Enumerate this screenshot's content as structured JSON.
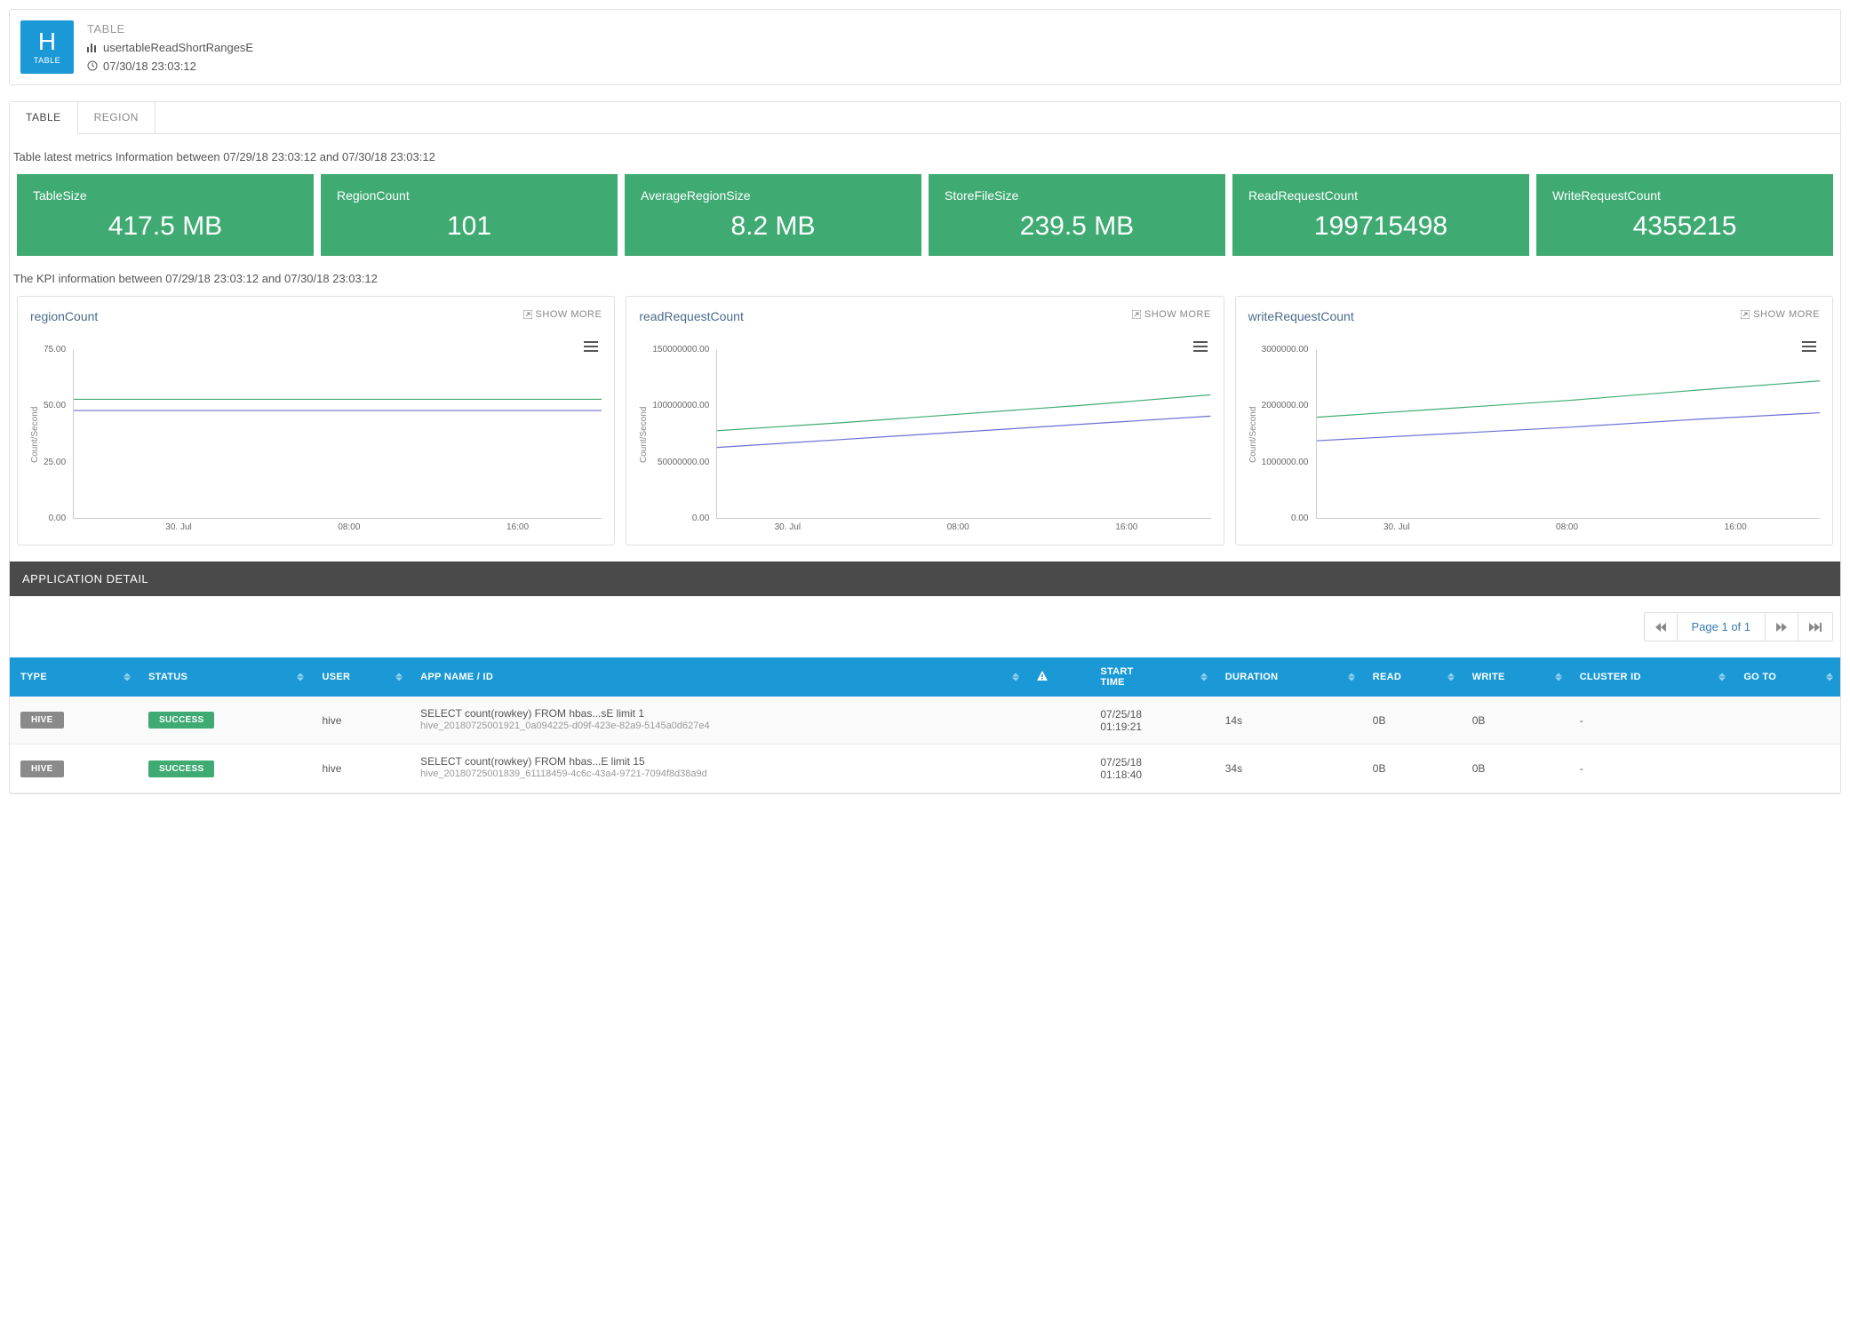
{
  "header": {
    "badge_letter": "H",
    "badge_sub": "TABLE",
    "category": "TABLE",
    "name": "usertableReadShortRangesE",
    "timestamp": "07/30/18 23:03:12"
  },
  "tabs": [
    {
      "label": "TABLE",
      "active": true
    },
    {
      "label": "REGION",
      "active": false
    }
  ],
  "section1_label": "Table latest metrics Information between 07/29/18 23:03:12 and 07/30/18 23:03:12",
  "metrics": [
    {
      "title": "TableSize",
      "value": "417.5 MB"
    },
    {
      "title": "RegionCount",
      "value": "101"
    },
    {
      "title": "AverageRegionSize",
      "value": "8.2 MB"
    },
    {
      "title": "StoreFileSize",
      "value": "239.5 MB"
    },
    {
      "title": "ReadRequestCount",
      "value": "199715498"
    },
    {
      "title": "WriteRequestCount",
      "value": "4355215"
    }
  ],
  "section2_label": "The KPI information between 07/29/18 23:03:12 and 07/30/18 23:03:12",
  "show_more_label": "SHOW MORE",
  "charts": [
    {
      "title": "regionCount",
      "type": "line",
      "y_label": "Count/Second",
      "y_ticks": [
        "75.00",
        "50.00",
        "25.00",
        "0.00"
      ],
      "x_ticks": [
        "30. Jul",
        "08:00",
        "16:00"
      ],
      "y_max": 75,
      "series": [
        {
          "color": "#3fab73",
          "points": [
            [
              0,
              53
            ],
            [
              0.25,
              53
            ],
            [
              0.5,
              53
            ],
            [
              0.75,
              53
            ],
            [
              1,
              53
            ]
          ]
        },
        {
          "color": "#6b6fd4",
          "points": [
            [
              0,
              48
            ],
            [
              0.25,
              48
            ],
            [
              0.5,
              48
            ],
            [
              0.75,
              48
            ],
            [
              1,
              48
            ]
          ]
        }
      ]
    },
    {
      "title": "readRequestCount",
      "type": "line",
      "y_label": "Count/Second",
      "y_ticks": [
        "150000000.00",
        "100000000.00",
        "50000000.00",
        "0.00"
      ],
      "x_ticks": [
        "30. Jul",
        "08:00",
        "16:00"
      ],
      "y_max": 150000000,
      "series": [
        {
          "color": "#3fab73",
          "points": [
            [
              0,
              78000000
            ],
            [
              0.25,
              85000000
            ],
            [
              0.5,
              93000000
            ],
            [
              0.75,
              101000000
            ],
            [
              1,
              110000000
            ]
          ]
        },
        {
          "color": "#6b6fd4",
          "points": [
            [
              0,
              63000000
            ],
            [
              0.25,
              70000000
            ],
            [
              0.5,
              77000000
            ],
            [
              0.75,
              84000000
            ],
            [
              1,
              91000000
            ]
          ]
        }
      ]
    },
    {
      "title": "writeRequestCount",
      "type": "line",
      "y_label": "Count/Second",
      "y_ticks": [
        "3000000.00",
        "2000000.00",
        "1000000.00",
        "0.00"
      ],
      "x_ticks": [
        "30. Jul",
        "08:00",
        "16:00"
      ],
      "y_max": 3000000,
      "series": [
        {
          "color": "#3fab73",
          "points": [
            [
              0,
              1800000
            ],
            [
              0.25,
              1950000
            ],
            [
              0.5,
              2100000
            ],
            [
              0.75,
              2280000
            ],
            [
              1,
              2450000
            ]
          ]
        },
        {
          "color": "#6b6fd4",
          "points": [
            [
              0,
              1380000
            ],
            [
              0.25,
              1500000
            ],
            [
              0.5,
              1620000
            ],
            [
              0.75,
              1760000
            ],
            [
              1,
              1880000
            ]
          ]
        }
      ]
    }
  ],
  "app_detail_label": "APPLICATION DETAIL",
  "pager_text": "Page 1 of 1",
  "table": {
    "columns": [
      "TYPE",
      "STATUS",
      "USER",
      "APP NAME / ID",
      "",
      "START TIME",
      "DURATION",
      "READ",
      "WRITE",
      "CLUSTER ID",
      "GO TO"
    ],
    "alert_col_index": 4,
    "rows": [
      {
        "type": "HIVE",
        "status": "SUCCESS",
        "user": "hive",
        "app_name": "SELECT count(rowkey) FROM hbas...sE limit 1",
        "app_id": "hive_20180725001921_0a094225-d09f-423e-82a9-5145a0d627e4",
        "start": "07/25/18 01:19:21",
        "duration": "14s",
        "read": "0B",
        "write": "0B",
        "cluster": "-"
      },
      {
        "type": "HIVE",
        "status": "SUCCESS",
        "user": "hive",
        "app_name": "SELECT count(rowkey) FROM hbas...E limit 15",
        "app_id": "hive_20180725001839_61118459-4c6c-43a4-9721-7094f8d38a9d",
        "start": "07/25/18 01:18:40",
        "duration": "34s",
        "read": "0B",
        "write": "0B",
        "cluster": "-"
      }
    ]
  },
  "colors": {
    "brand_blue": "#1a99d6",
    "brand_green": "#3fab73",
    "series2": "#6b6fd4",
    "grid": "#cccccc",
    "text_muted": "#888888"
  }
}
